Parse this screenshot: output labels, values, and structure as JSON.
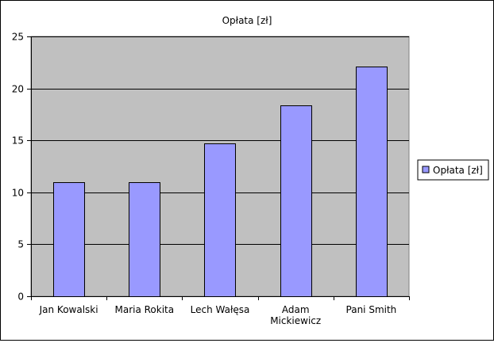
{
  "chart_data": {
    "type": "bar",
    "title": "Opłata [zł]",
    "xlabel": "",
    "ylabel": "",
    "categories": [
      [
        "Jan Kowalski"
      ],
      [
        "Maria Rokita"
      ],
      [
        "Lech Wałęsa"
      ],
      [
        "Adam",
        "Mickiewicz"
      ],
      [
        "Pani Smith"
      ]
    ],
    "series": [
      {
        "name": "Opłata [zł]",
        "values": [
          11,
          11,
          14.7,
          18.4,
          22.1
        ],
        "color": "#9999ff"
      }
    ],
    "ylim": [
      0,
      25
    ],
    "yticks": [
      "0",
      "5",
      "10",
      "15",
      "20",
      "25"
    ],
    "grid": true,
    "legend": "right",
    "plot_background": "#c0c0c0"
  }
}
